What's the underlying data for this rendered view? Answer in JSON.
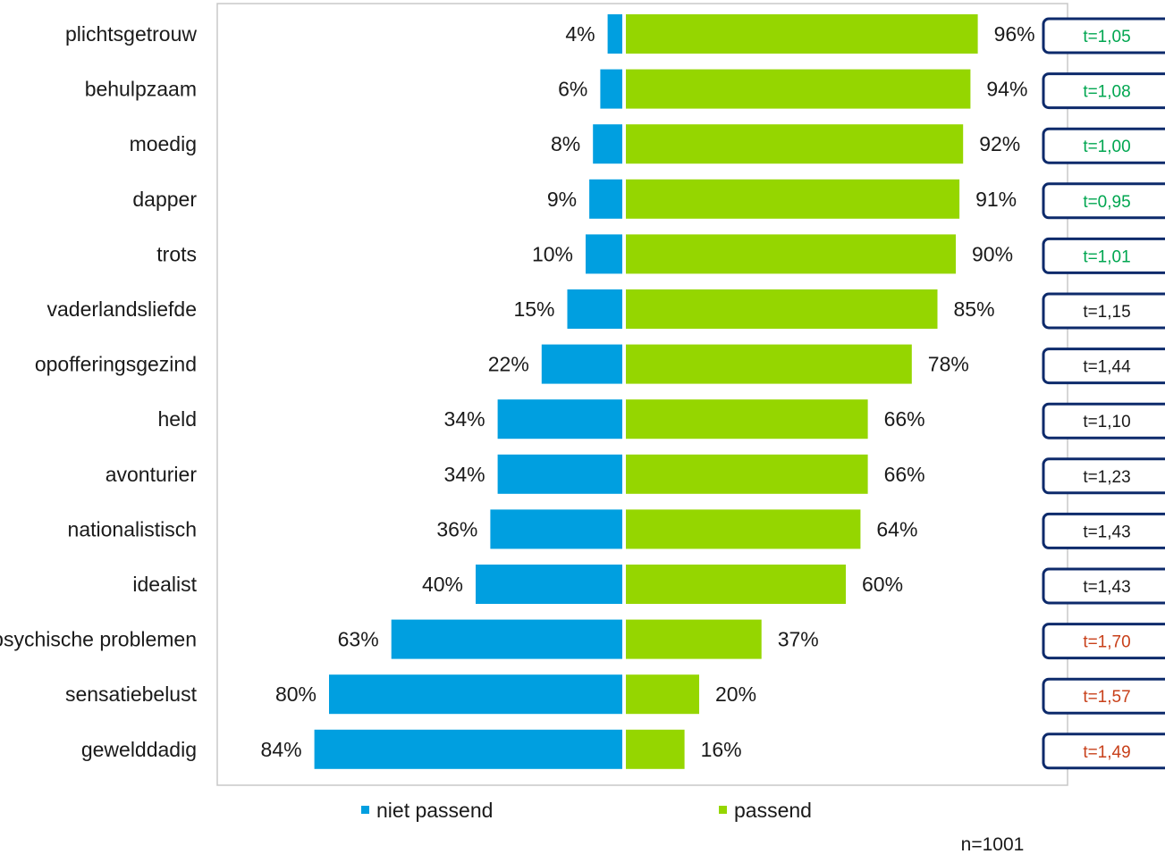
{
  "chart_data": {
    "type": "bar",
    "orientation": "horizontal-diverging",
    "categories": [
      "plichtsgetrouw",
      "behulpzaam",
      "moedig",
      "dapper",
      "trots",
      "vaderlandsliefde",
      "opofferingsgezind",
      "held",
      "avonturier",
      "nationalistisch",
      "idealist",
      "psychische problemen",
      "sensatiebelust",
      "gewelddadig"
    ],
    "series": [
      {
        "name": "niet passend",
        "color": "#009fe0",
        "values": [
          4,
          6,
          8,
          9,
          10,
          15,
          22,
          34,
          34,
          36,
          40,
          63,
          80,
          84
        ],
        "labels": [
          "4%",
          "6%",
          "8%",
          "9%",
          "10%",
          "15%",
          "22%",
          "34%",
          "34%",
          "36%",
          "40%",
          "63%",
          "80%",
          "84%"
        ]
      },
      {
        "name": "passend",
        "color": "#95d600",
        "values": [
          96,
          94,
          92,
          91,
          90,
          85,
          78,
          66,
          66,
          64,
          60,
          37,
          20,
          16
        ],
        "labels": [
          "96%",
          "94%",
          "92%",
          "91%",
          "90%",
          "85%",
          "78%",
          "66%",
          "66%",
          "64%",
          "60%",
          "37%",
          "20%",
          "16%"
        ]
      }
    ],
    "annotations": {
      "t_values": [
        "t=1,05",
        "t=1,08",
        "t=1,00",
        "t=0,95",
        "t=1,01",
        "t=1,15",
        "t=1,44",
        "t=1,10",
        "t=1,23",
        "t=1,43",
        "t=1,43",
        "t=1,70",
        "t=1,57",
        "t=1,49"
      ],
      "t_colors": [
        "#00a650",
        "#00a650",
        "#00a650",
        "#00a650",
        "#00a650",
        "#1a1a1a",
        "#1a1a1a",
        "#1a1a1a",
        "#1a1a1a",
        "#1a1a1a",
        "#1a1a1a",
        "#c8401a",
        "#c8401a",
        "#c8401a"
      ],
      "box_border_color": "#0d2a6b"
    },
    "n": "n=1001",
    "title": "",
    "xlabel": "",
    "ylabel": "",
    "xlim": [
      -100,
      100
    ],
    "grid": false,
    "legend": "bottom"
  }
}
